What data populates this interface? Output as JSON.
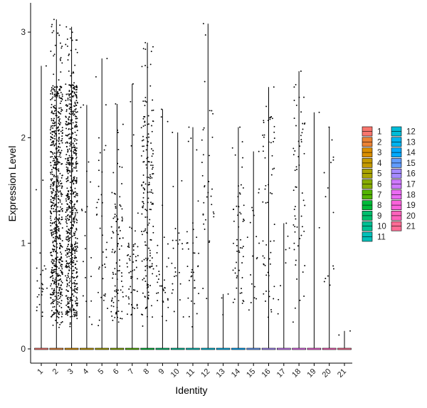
{
  "chart_data": {
    "type": "violin-jitter",
    "xlabel": "Identity",
    "ylabel": "Expression Level",
    "categories": [
      "1",
      "2",
      "3",
      "4",
      "5",
      "6",
      "7",
      "8",
      "9",
      "10",
      "11",
      "12",
      "13",
      "14",
      "15",
      "16",
      "17",
      "18",
      "19",
      "20",
      "21"
    ],
    "y_ticks": [
      0,
      1,
      2,
      3
    ],
    "ylim": [
      -0.15,
      3.15
    ],
    "grid": false,
    "legend_position": "right",
    "legend_title": "",
    "legend_entries": [
      "1",
      "2",
      "3",
      "4",
      "5",
      "6",
      "7",
      "8",
      "9",
      "10",
      "11",
      "12",
      "13",
      "14",
      "15",
      "16",
      "17",
      "18",
      "19",
      "20",
      "21"
    ],
    "colors": [
      "#F8766D",
      "#EB8335",
      "#DA8F00",
      "#C49A00",
      "#A9A400",
      "#86AC00",
      "#53B400",
      "#00BA38",
      "#00BE6D",
      "#00C094",
      "#00C0B8",
      "#00BCD8",
      "#00B4F0",
      "#00A9FF",
      "#619CFF",
      "#A58AFF",
      "#CF78FF",
      "#EB6AF3",
      "#FA62DB",
      "#FF62BC",
      "#FF6C95"
    ],
    "series": [
      {
        "name": "1",
        "max_value": 2.68,
        "dense_low": 0.3,
        "dense_high": 0.8,
        "n_points": 25
      },
      {
        "name": "2",
        "max_value": 3.12,
        "dense_low": 0.3,
        "dense_high": 2.5,
        "n_points": 650
      },
      {
        "name": "3",
        "max_value": 3.05,
        "dense_low": 0.3,
        "dense_high": 2.5,
        "n_points": 680
      },
      {
        "name": "4",
        "max_value": 2.31,
        "dense_low": 0.2,
        "dense_high": 1.8,
        "n_points": 20
      },
      {
        "name": "5",
        "max_value": 2.75,
        "dense_low": 0.2,
        "dense_high": 2.0,
        "n_points": 40
      },
      {
        "name": "6",
        "max_value": 2.32,
        "dense_low": 0.25,
        "dense_high": 1.5,
        "n_points": 100
      },
      {
        "name": "7",
        "max_value": 2.51,
        "dense_low": 0.3,
        "dense_high": 1.0,
        "n_points": 60
      },
      {
        "name": "8",
        "max_value": 2.9,
        "dense_low": 0.3,
        "dense_high": 2.4,
        "n_points": 180
      },
      {
        "name": "9",
        "max_value": 2.27,
        "dense_low": 0.3,
        "dense_high": 1.0,
        "n_points": 35
      },
      {
        "name": "10",
        "max_value": 2.05,
        "dense_low": 0.3,
        "dense_high": 1.2,
        "n_points": 25
      },
      {
        "name": "11",
        "max_value": 2.1,
        "dense_low": 0.3,
        "dense_high": 1.2,
        "n_points": 35
      },
      {
        "name": "12",
        "max_value": 3.08,
        "dense_low": 1.0,
        "dense_high": 2.3,
        "n_points": 35
      },
      {
        "name": "13",
        "max_value": 0.52,
        "dense_low": 0.25,
        "dense_high": 0.5,
        "n_points": 3
      },
      {
        "name": "14",
        "max_value": 2.1,
        "dense_low": 0.4,
        "dense_high": 2.0,
        "n_points": 55
      },
      {
        "name": "15",
        "max_value": 1.87,
        "dense_low": 0.3,
        "dense_high": 1.8,
        "n_points": 20
      },
      {
        "name": "16",
        "max_value": 2.48,
        "dense_low": 0.3,
        "dense_high": 2.2,
        "n_points": 60
      },
      {
        "name": "17",
        "max_value": 1.19,
        "dense_low": 0.2,
        "dense_high": 1.1,
        "n_points": 8
      },
      {
        "name": "18",
        "max_value": 2.63,
        "dense_low": 0.4,
        "dense_high": 2.4,
        "n_points": 60
      },
      {
        "name": "19",
        "max_value": 2.24,
        "dense_low": 0.2,
        "dense_high": 2.2,
        "n_points": 2
      },
      {
        "name": "20",
        "max_value": 2.1,
        "dense_low": 0.5,
        "dense_high": 2.1,
        "n_points": 15
      },
      {
        "name": "21",
        "max_value": 0.17,
        "dense_low": 0.1,
        "dense_high": 0.17,
        "n_points": 2
      }
    ]
  }
}
